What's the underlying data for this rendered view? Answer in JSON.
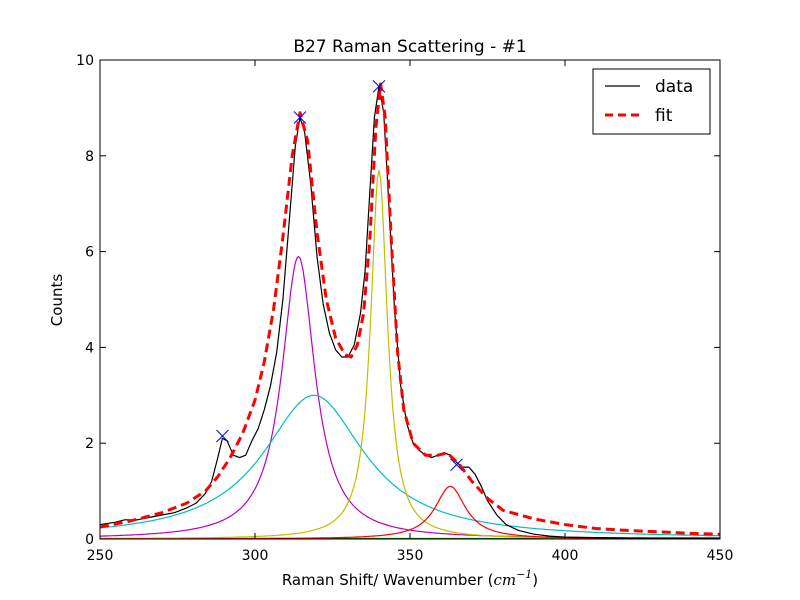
{
  "chart_data": {
    "type": "line",
    "title": "B27 Raman Scattering - #1",
    "xlabel": "Raman Shift/ Wavenumber (",
    "xlabel_unit_base": "cm",
    "xlabel_unit_exp": "−1",
    "xlabel_suffix": ")",
    "ylabel": "Counts",
    "xlim": [
      250,
      450
    ],
    "ylim": [
      0,
      10
    ],
    "x_ticks": [
      250,
      300,
      350,
      400,
      450
    ],
    "y_ticks": [
      0,
      2,
      4,
      6,
      8,
      10
    ],
    "grid": false,
    "legend": {
      "placement": "top-right",
      "entries": [
        "data",
        "fit"
      ]
    },
    "series": [
      {
        "name": "data",
        "style": "solid",
        "color": "#000000",
        "x": [
          250,
          255,
          258,
          262,
          266,
          270,
          274,
          278,
          281,
          284,
          286,
          288,
          289.5,
          291,
          293,
          295,
          297,
          299,
          301,
          303,
          305,
          307,
          309,
          311,
          313,
          314.5,
          316,
          318,
          320,
          322,
          324,
          326,
          328,
          330,
          332,
          334,
          335.5,
          337,
          338.5,
          340,
          341.5,
          343,
          345,
          347,
          349,
          351,
          353,
          355,
          357,
          359,
          361,
          363,
          365,
          367,
          369,
          371,
          373,
          375,
          378,
          381,
          385,
          390,
          395,
          400,
          410,
          420,
          430,
          440,
          450
        ],
        "y": [
          0.3,
          0.35,
          0.4,
          0.4,
          0.45,
          0.5,
          0.55,
          0.65,
          0.75,
          0.95,
          1.2,
          1.7,
          2.1,
          2.05,
          1.75,
          1.7,
          1.75,
          2.05,
          2.3,
          2.7,
          3.2,
          3.9,
          5.0,
          6.6,
          8.2,
          8.8,
          8.5,
          7.4,
          5.9,
          4.9,
          4.3,
          3.95,
          3.8,
          3.8,
          4.05,
          4.7,
          5.6,
          7.2,
          8.8,
          9.45,
          8.9,
          7.2,
          4.8,
          3.2,
          2.4,
          2.0,
          1.85,
          1.75,
          1.7,
          1.75,
          1.8,
          1.75,
          1.6,
          1.5,
          1.5,
          1.35,
          1.1,
          0.8,
          0.5,
          0.3,
          0.18,
          0.1,
          0.06,
          0.04,
          0.03,
          0.02,
          0.02,
          0.02,
          0.02
        ]
      },
      {
        "name": "fit",
        "style": "dashed",
        "color": "#ff0000",
        "x": [
          250,
          260,
          270,
          278,
          284,
          288,
          292,
          296,
          300,
          303,
          306,
          309,
          312,
          314.5,
          317,
          320,
          323,
          326,
          329,
          331,
          333,
          335,
          337,
          339,
          340.5,
          342,
          344,
          346,
          348,
          351,
          355,
          359,
          362,
          366,
          370,
          375,
          380,
          390,
          400,
          410,
          420,
          430,
          440,
          450
        ],
        "y": [
          0.25,
          0.38,
          0.55,
          0.75,
          1.0,
          1.3,
          1.7,
          2.2,
          2.9,
          3.7,
          4.8,
          6.3,
          8.0,
          8.9,
          8.3,
          6.4,
          5.0,
          4.2,
          3.85,
          3.8,
          4.05,
          4.7,
          6.2,
          8.6,
          9.5,
          8.8,
          6.2,
          3.9,
          2.7,
          2.0,
          1.75,
          1.75,
          1.8,
          1.55,
          1.2,
          0.85,
          0.6,
          0.42,
          0.3,
          0.22,
          0.18,
          0.15,
          0.12,
          0.1
        ]
      },
      {
        "name": "",
        "style": "solid",
        "color": "#bf00bf",
        "model": {
          "shape": "lorentzian",
          "center": 314,
          "amplitude": 5.9,
          "hwhm": 6.5
        }
      },
      {
        "name": "",
        "style": "solid",
        "color": "#00bfbf",
        "model": {
          "shape": "lorentzian",
          "center": 319,
          "amplitude": 3.0,
          "hwhm": 20
        }
      },
      {
        "name": "",
        "style": "solid",
        "color": "#bfbf00",
        "model": {
          "shape": "lorentzian",
          "center": 340,
          "amplitude": 7.7,
          "hwhm": 3.3
        }
      },
      {
        "name": "",
        "style": "solid",
        "color": "#ff0000",
        "model": {
          "shape": "lorentzian",
          "center": 363,
          "amplitude": 1.1,
          "hwhm": 6
        }
      },
      {
        "name": "",
        "style": "solid",
        "color": "#008000",
        "x": [
          250,
          450
        ],
        "y": [
          0.01,
          0.01
        ]
      }
    ],
    "peaks": {
      "marker": "x",
      "color": "#0000ff",
      "x": [
        289.5,
        314.5,
        340,
        365
      ],
      "y": [
        2.15,
        8.8,
        9.45,
        1.55
      ]
    }
  }
}
